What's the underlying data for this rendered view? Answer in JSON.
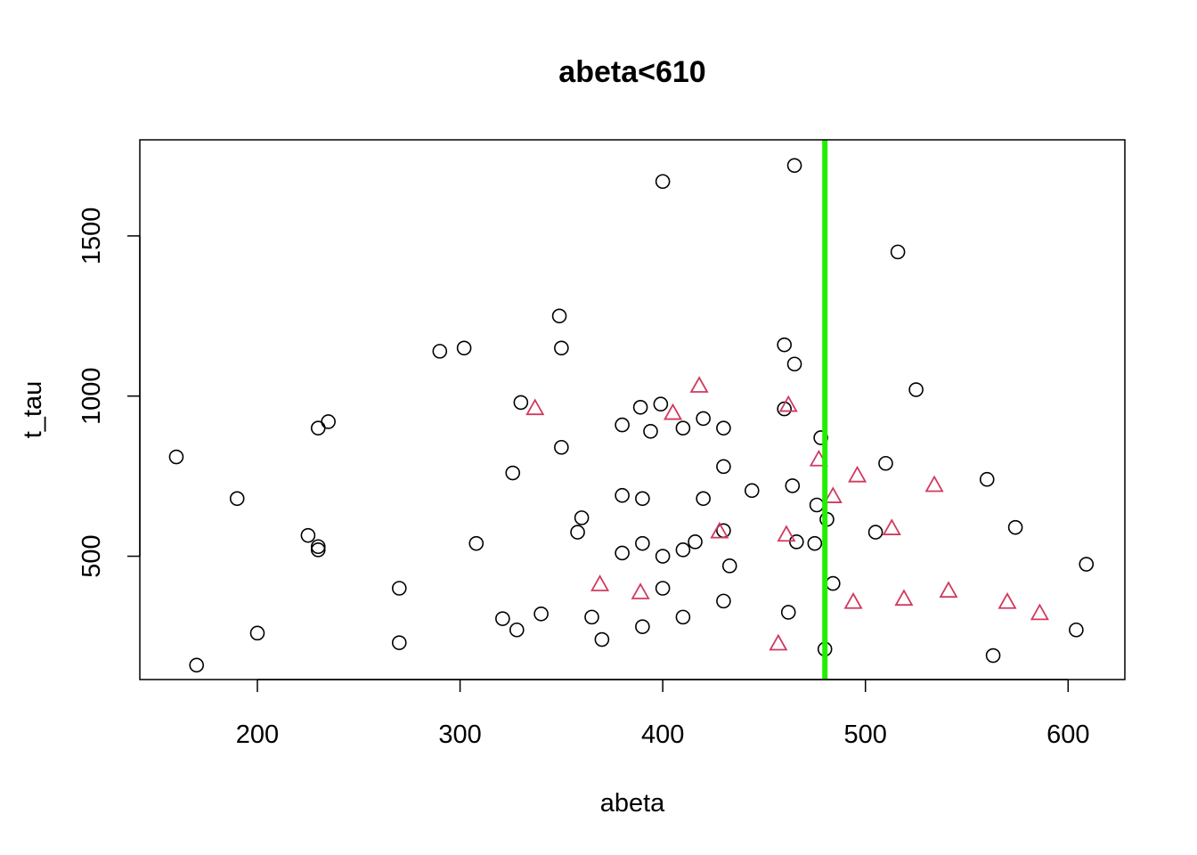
{
  "chart_data": {
    "type": "scatter",
    "title": "abeta<610",
    "xlabel": "abeta",
    "ylabel": "t_tau",
    "xlim": [
      142,
      628
    ],
    "ylim": [
      115,
      1800
    ],
    "x_ticks": [
      "200",
      "300",
      "400",
      "500",
      "600"
    ],
    "y_ticks": [
      "500",
      "1000",
      "1500"
    ],
    "grid": false,
    "legend": "none",
    "vline": {
      "x": 480,
      "color": "#22ee00"
    },
    "series": [
      {
        "marker": "circle",
        "color": "#000000",
        "points": [
          [
            160,
            810
          ],
          [
            170,
            160
          ],
          [
            190,
            680
          ],
          [
            200,
            260
          ],
          [
            225,
            565
          ],
          [
            230,
            530
          ],
          [
            230,
            520
          ],
          [
            230,
            900
          ],
          [
            235,
            920
          ],
          [
            270,
            400
          ],
          [
            270,
            230
          ],
          [
            290,
            1140
          ],
          [
            302,
            1150
          ],
          [
            308,
            540
          ],
          [
            321,
            305
          ],
          [
            326,
            760
          ],
          [
            328,
            270
          ],
          [
            330,
            980
          ],
          [
            340,
            320
          ],
          [
            349,
            1250
          ],
          [
            350,
            1150
          ],
          [
            350,
            840
          ],
          [
            358,
            575
          ],
          [
            360,
            620
          ],
          [
            365,
            310
          ],
          [
            370,
            240
          ],
          [
            380,
            910
          ],
          [
            380,
            690
          ],
          [
            380,
            510
          ],
          [
            389,
            965
          ],
          [
            390,
            680
          ],
          [
            390,
            540
          ],
          [
            390,
            280
          ],
          [
            394,
            890
          ],
          [
            399,
            975
          ],
          [
            400,
            1670
          ],
          [
            400,
            500
          ],
          [
            400,
            400
          ],
          [
            410,
            900
          ],
          [
            410,
            520
          ],
          [
            410,
            310
          ],
          [
            416,
            545
          ],
          [
            420,
            930
          ],
          [
            420,
            680
          ],
          [
            430,
            900
          ],
          [
            430,
            780
          ],
          [
            430,
            580
          ],
          [
            430,
            360
          ],
          [
            433,
            470
          ],
          [
            444,
            705
          ],
          [
            460,
            1160
          ],
          [
            460,
            960
          ],
          [
            462,
            325
          ],
          [
            464,
            720
          ],
          [
            465,
            1720
          ],
          [
            465,
            1100
          ],
          [
            466,
            545
          ],
          [
            475,
            540
          ],
          [
            476,
            660
          ],
          [
            478,
            870
          ],
          [
            480,
            210
          ],
          [
            481,
            615
          ],
          [
            484,
            415
          ],
          [
            505,
            575
          ],
          [
            510,
            790
          ],
          [
            516,
            1450
          ],
          [
            525,
            1020
          ],
          [
            560,
            740
          ],
          [
            563,
            190
          ],
          [
            574,
            590
          ],
          [
            604,
            270
          ],
          [
            609,
            475
          ]
        ]
      },
      {
        "marker": "triangle",
        "color": "#d03a5e",
        "points": [
          [
            337,
            960
          ],
          [
            369,
            410
          ],
          [
            389,
            385
          ],
          [
            405,
            945
          ],
          [
            418,
            1030
          ],
          [
            428,
            575
          ],
          [
            457,
            225
          ],
          [
            461,
            565
          ],
          [
            462,
            970
          ],
          [
            477,
            800
          ],
          [
            484,
            685
          ],
          [
            494,
            355
          ],
          [
            496,
            750
          ],
          [
            513,
            585
          ],
          [
            519,
            365
          ],
          [
            534,
            720
          ],
          [
            541,
            390
          ],
          [
            570,
            355
          ],
          [
            586,
            320
          ]
        ]
      }
    ]
  }
}
